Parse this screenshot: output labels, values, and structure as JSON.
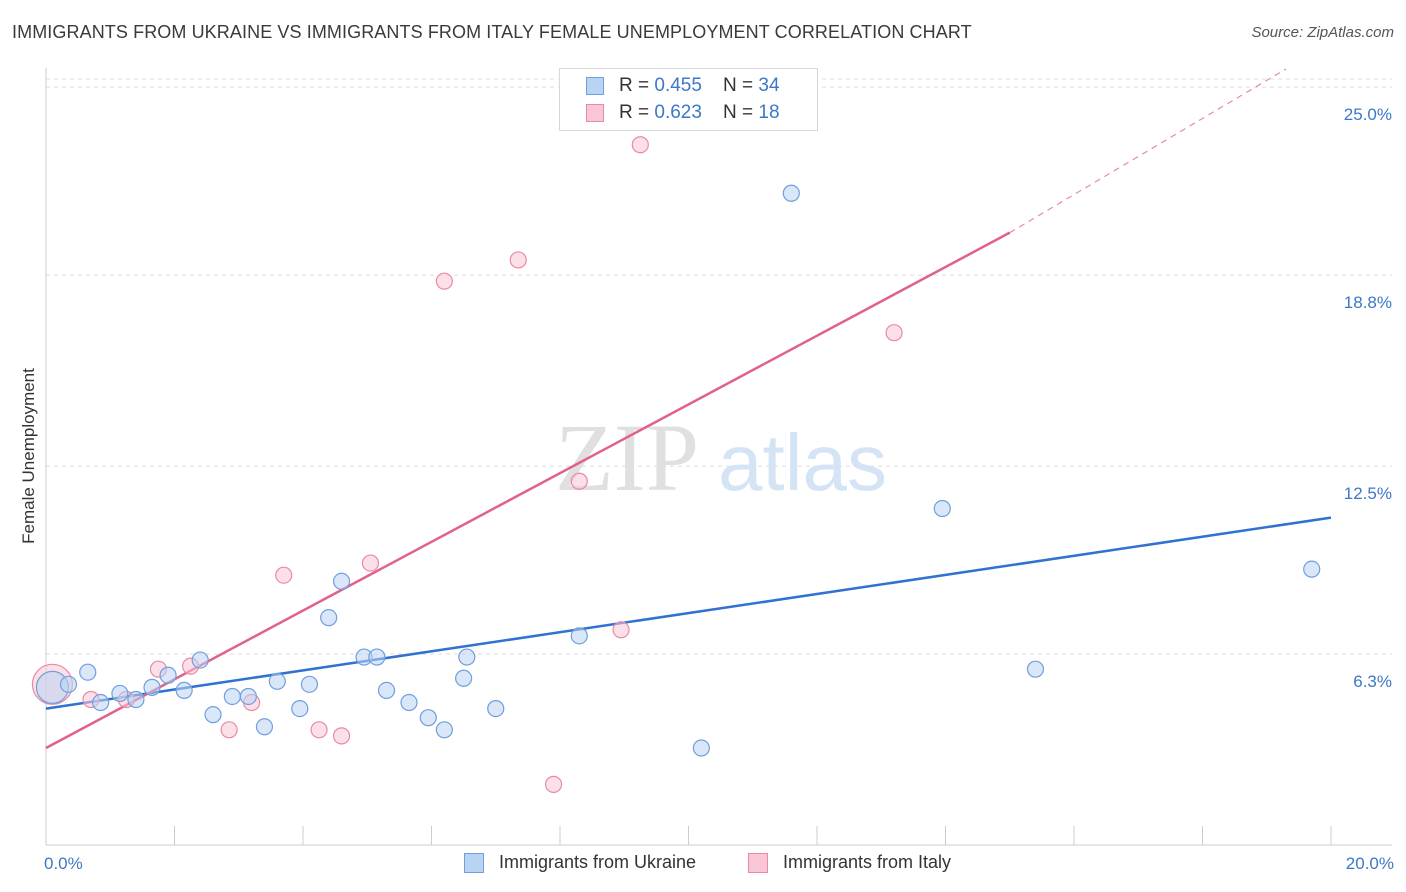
{
  "header": {
    "title": "IMMIGRANTS FROM UKRAINE VS IMMIGRANTS FROM ITALY FEMALE UNEMPLOYMENT CORRELATION CHART",
    "source": "Source: ZipAtlas.com"
  },
  "watermark": {
    "zip": "ZIP",
    "atlas": "atlas"
  },
  "legend": {
    "rows": [
      {
        "r_label": "R = ",
        "r_value": "0.455",
        "n_label": "N = ",
        "n_value": "34"
      },
      {
        "r_label": "R = ",
        "r_value": "0.623",
        "n_label": "N = ",
        "n_value": "18"
      }
    ]
  },
  "bottom_legend": {
    "ukraine": "Immigrants from Ukraine",
    "italy": "Immigrants from Italy"
  },
  "colors": {
    "ukraine_fill": "#b9d3f3",
    "ukraine_stroke": "#6f9fdc",
    "ukraine_line": "#2f72d0",
    "italy_fill": "#f9c6d5",
    "italy_stroke": "#e88aa6",
    "italy_line": "#e0618c",
    "tick_text": "#3b78c7",
    "grid": "#dcdcdc"
  },
  "chart_data": {
    "type": "scatter",
    "title": "IMMIGRANTS FROM UKRAINE VS IMMIGRANTS FROM ITALY FEMALE UNEMPLOYMENT CORRELATION CHART",
    "xlabel": "",
    "ylabel": "Female Unemployment",
    "xlim": [
      0,
      20
    ],
    "ylim": [
      0,
      25.5
    ],
    "x_tick_labels": [
      "0.0%",
      "20.0%"
    ],
    "y_ticks": [
      6.3,
      12.5,
      18.8,
      25.0
    ],
    "y_tick_labels": [
      "6.3%",
      "12.5%",
      "18.8%",
      "25.0%"
    ],
    "series": [
      {
        "name": "Immigrants from Ukraine",
        "r": 0.455,
        "n": 34,
        "points": [
          {
            "x": 0.1,
            "y": 5.2,
            "s": 16
          },
          {
            "x": 0.35,
            "y": 5.3
          },
          {
            "x": 0.65,
            "y": 5.7
          },
          {
            "x": 0.85,
            "y": 4.7
          },
          {
            "x": 1.15,
            "y": 5.0
          },
          {
            "x": 1.4,
            "y": 4.8
          },
          {
            "x": 1.65,
            "y": 5.2
          },
          {
            "x": 1.9,
            "y": 5.6
          },
          {
            "x": 2.15,
            "y": 5.1
          },
          {
            "x": 2.4,
            "y": 6.1
          },
          {
            "x": 2.6,
            "y": 4.3
          },
          {
            "x": 2.9,
            "y": 4.9
          },
          {
            "x": 3.15,
            "y": 4.9
          },
          {
            "x": 3.4,
            "y": 3.9
          },
          {
            "x": 3.6,
            "y": 5.4
          },
          {
            "x": 3.95,
            "y": 4.5
          },
          {
            "x": 4.1,
            "y": 5.3
          },
          {
            "x": 4.4,
            "y": 7.5
          },
          {
            "x": 4.6,
            "y": 8.7
          },
          {
            "x": 4.95,
            "y": 6.2
          },
          {
            "x": 5.15,
            "y": 6.2
          },
          {
            "x": 5.3,
            "y": 5.1
          },
          {
            "x": 5.65,
            "y": 4.7
          },
          {
            "x": 5.95,
            "y": 4.2
          },
          {
            "x": 6.2,
            "y": 3.8
          },
          {
            "x": 6.5,
            "y": 5.5
          },
          {
            "x": 6.55,
            "y": 6.2
          },
          {
            "x": 7.0,
            "y": 4.5
          },
          {
            "x": 8.3,
            "y": 6.9
          },
          {
            "x": 10.2,
            "y": 3.2
          },
          {
            "x": 11.6,
            "y": 21.5
          },
          {
            "x": 13.95,
            "y": 11.1
          },
          {
            "x": 15.4,
            "y": 5.8
          },
          {
            "x": 19.7,
            "y": 9.1
          }
        ],
        "trend": {
          "x0": 0,
          "y0": 4.5,
          "x1": 20,
          "y1": 10.8
        }
      },
      {
        "name": "Immigrants from Italy",
        "r": 0.623,
        "n": 18,
        "points": [
          {
            "x": 0.1,
            "y": 5.3,
            "s": 20
          },
          {
            "x": 0.7,
            "y": 4.8
          },
          {
            "x": 1.25,
            "y": 4.8
          },
          {
            "x": 1.75,
            "y": 5.8
          },
          {
            "x": 2.25,
            "y": 5.9
          },
          {
            "x": 2.85,
            "y": 3.8
          },
          {
            "x": 3.2,
            "y": 4.7
          },
          {
            "x": 3.7,
            "y": 8.9
          },
          {
            "x": 4.25,
            "y": 3.8
          },
          {
            "x": 4.6,
            "y": 3.6
          },
          {
            "x": 5.05,
            "y": 9.3
          },
          {
            "x": 6.2,
            "y": 18.6
          },
          {
            "x": 7.35,
            "y": 19.3
          },
          {
            "x": 7.9,
            "y": 2.0
          },
          {
            "x": 8.3,
            "y": 12.0
          },
          {
            "x": 8.95,
            "y": 7.1
          },
          {
            "x": 9.25,
            "y": 23.1
          },
          {
            "x": 13.2,
            "y": 16.9
          }
        ],
        "trend": {
          "x0": 0,
          "y0": 3.2,
          "x1": 15,
          "y1": 20.2
        },
        "trend_extension": {
          "x0": 15,
          "y0": 20.2,
          "x1": 19.3,
          "y1": 25.6
        }
      }
    ]
  }
}
